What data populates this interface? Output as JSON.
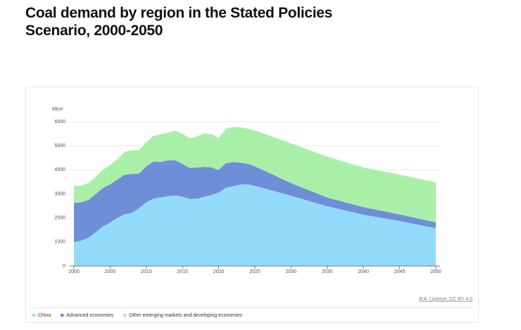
{
  "chart_data": {
    "type": "stacked_area",
    "title": "Coal demand by region in the Stated Policies Scenario, 2000-2050",
    "y_label": "Mtce",
    "source": "IEA. Licence: CC BY 4.0",
    "x": [
      2000,
      2001,
      2002,
      2003,
      2004,
      2005,
      2006,
      2007,
      2008,
      2009,
      2010,
      2011,
      2012,
      2013,
      2014,
      2015,
      2016,
      2017,
      2018,
      2019,
      2020,
      2021,
      2022,
      2023,
      2024,
      2025,
      2030,
      2035,
      2040,
      2045,
      2050
    ],
    "series": [
      {
        "name": "China",
        "color": "#93dbfa",
        "values": [
          990,
          1050,
          1170,
          1400,
          1640,
          1800,
          2000,
          2150,
          2200,
          2400,
          2650,
          2800,
          2850,
          2900,
          2930,
          2880,
          2780,
          2800,
          2880,
          2950,
          3050,
          3250,
          3320,
          3380,
          3390,
          3330,
          2920,
          2480,
          2130,
          1870,
          1570
        ]
      },
      {
        "name": "Advanced economies",
        "color": "#6f8ed8",
        "values": [
          1640,
          1600,
          1580,
          1600,
          1610,
          1600,
          1600,
          1650,
          1630,
          1450,
          1500,
          1550,
          1480,
          1500,
          1470,
          1370,
          1300,
          1300,
          1250,
          1150,
          950,
          1030,
          1010,
          920,
          860,
          820,
          530,
          370,
          320,
          280,
          250
        ]
      },
      {
        "name": "Other emerging markets and developing economies",
        "color": "#a8f0a8",
        "values": [
          700,
          700,
          700,
          700,
          750,
          800,
          850,
          950,
          990,
          970,
          1000,
          1070,
          1150,
          1150,
          1230,
          1250,
          1240,
          1300,
          1390,
          1380,
          1330,
          1440,
          1450,
          1470,
          1470,
          1490,
          1650,
          1700,
          1650,
          1650,
          1660
        ]
      }
    ],
    "xlim": [
      2000,
      2050
    ],
    "xticks": [
      2000,
      2005,
      2010,
      2015,
      2020,
      2025,
      2030,
      2035,
      2040,
      2045,
      2050
    ],
    "ylim": [
      0,
      6000
    ],
    "yticks": [
      0,
      1000,
      2000,
      3000,
      4000,
      5000,
      6000
    ],
    "grid": true
  }
}
